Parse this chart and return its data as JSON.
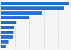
{
  "values": [
    95,
    88,
    57,
    40,
    22,
    19,
    18,
    17,
    11,
    7
  ],
  "bar_color": "#2b6cce",
  "background_color": "#f5f5f5",
  "grid_color": "#cccccc",
  "figsize": [
    1.0,
    0.71
  ],
  "dpi": 100
}
